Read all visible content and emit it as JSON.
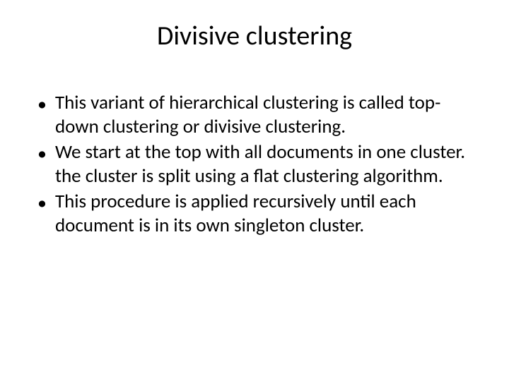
{
  "slide": {
    "title": "Divisive clustering",
    "bullets": [
      "This variant of hierarchical clustering is called top-down clustering or divisive clustering.",
      "We start at the top with all documents in one cluster. the cluster is split using a flat clustering algorithm.",
      "This procedure is applied recursively until each document is in its own singleton cluster."
    ],
    "background_color": "#ffffff",
    "text_color": "#000000",
    "title_fontsize": 38,
    "body_fontsize": 27,
    "bullet_char": "•"
  }
}
